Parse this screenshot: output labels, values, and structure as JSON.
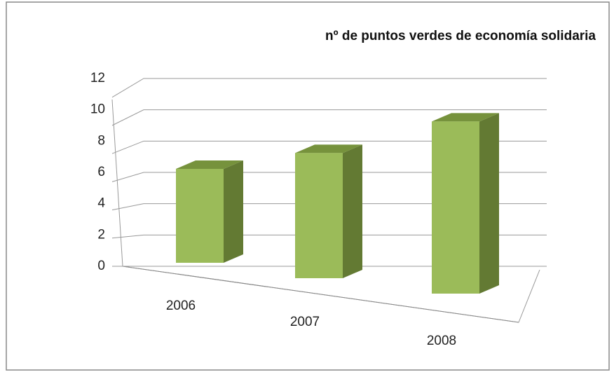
{
  "chart_data": {
    "type": "bar",
    "title": "nº de puntos verdes de economía solidaria",
    "categories": [
      "2006",
      "2007",
      "2008"
    ],
    "values": [
      6,
      8,
      11
    ],
    "color": "#9bbb59",
    "ylim": [
      0,
      12
    ],
    "yticks": [
      0,
      2,
      4,
      6,
      8,
      10,
      12
    ],
    "grid": true
  }
}
